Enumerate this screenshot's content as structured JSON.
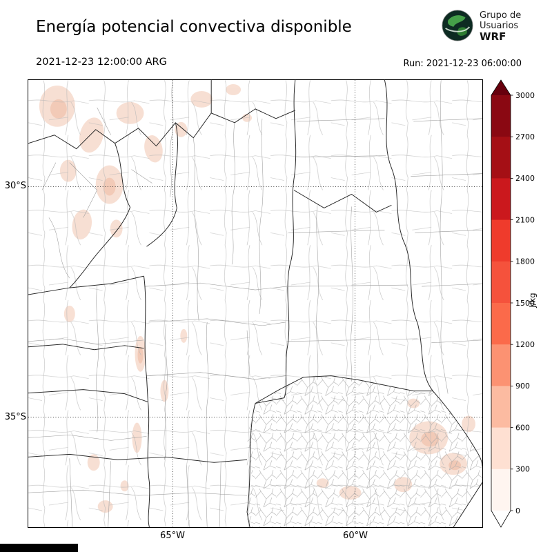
{
  "header": {
    "title": "Energía potencial convectiva disponible",
    "valid_time": "2021-12-23 12:00:00 ARG",
    "run_label": "Run: 2021-12-23 06:00:00"
  },
  "logo": {
    "line1": "Grupo de",
    "line2": "Usuarios",
    "line3": "WRF"
  },
  "map": {
    "lat_ticks": [
      {
        "label": "30°S"
      },
      {
        "label": "35°S"
      }
    ],
    "lon_ticks": [
      {
        "label": "65°W"
      },
      {
        "label": "60°W"
      }
    ]
  },
  "colorbar": {
    "unit": "J/kg",
    "tick_labels_top_to_bottom": [
      "3000",
      "2700",
      "2400",
      "2100",
      "1800",
      "1500",
      "1200",
      "900",
      "600",
      "300",
      "0"
    ],
    "segment_colors_top_to_bottom": [
      "#8a0812",
      "#a50f15",
      "#cb181d",
      "#ef3b2c",
      "#f5523c",
      "#fb6a4a",
      "#fc9272",
      "#fcbba1",
      "#fee0d2",
      "#fff5f0"
    ],
    "over_color": "#67000d",
    "under_color": "#ffffff",
    "outline_color": "#000000"
  }
}
